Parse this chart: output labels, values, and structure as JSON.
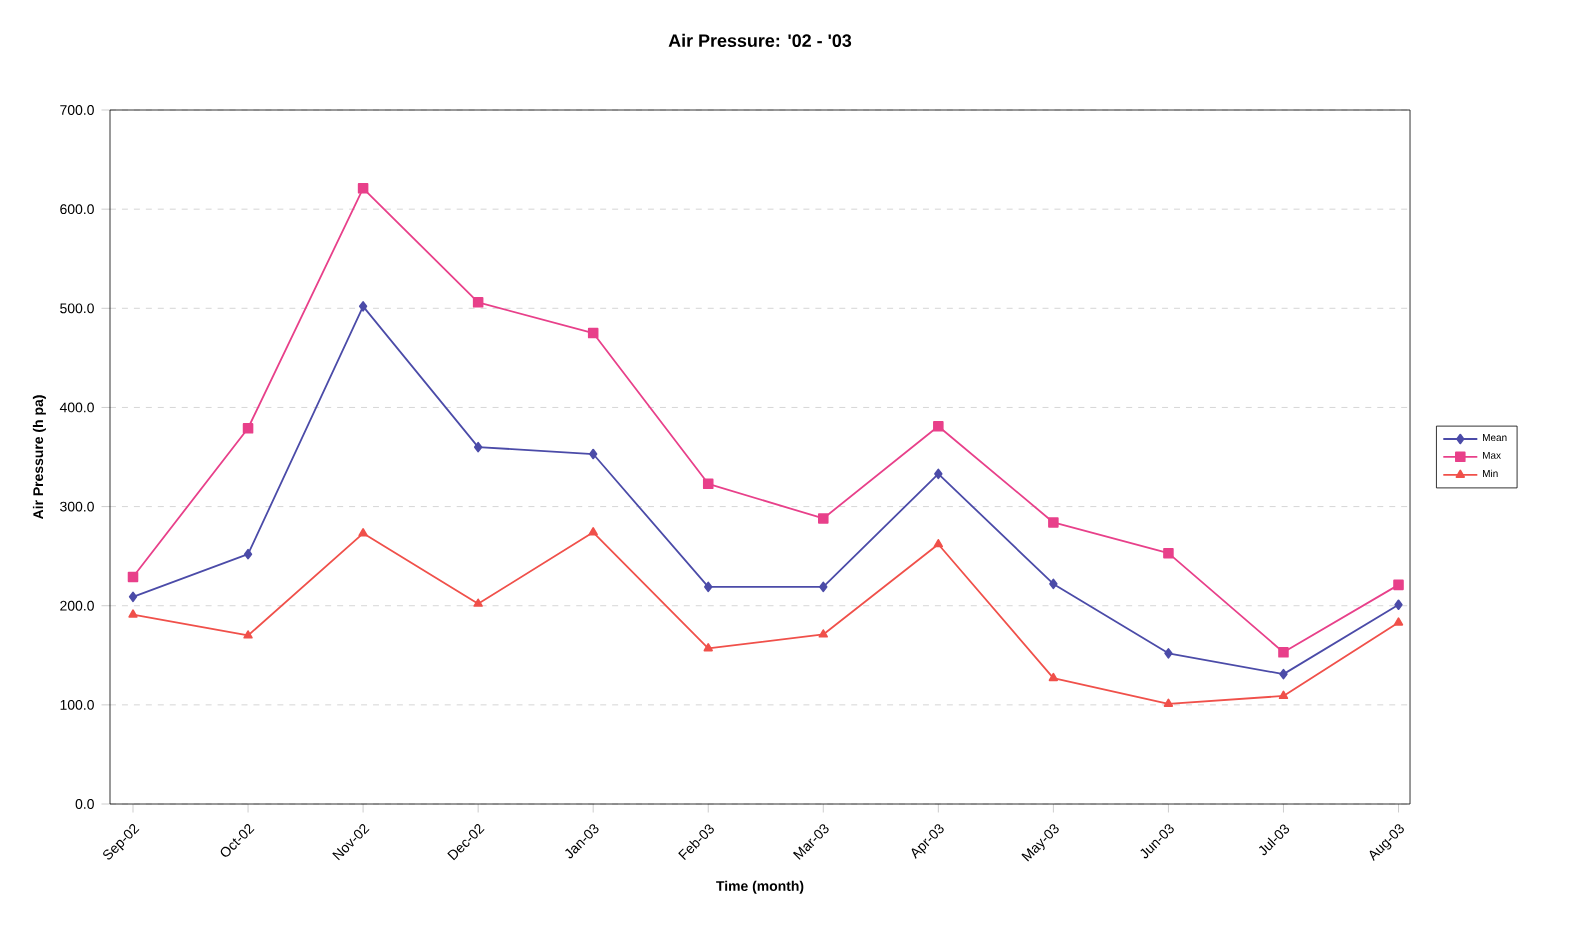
{
  "chart_data": {
    "type": "line",
    "title": "Air Pressure: '02 - '03",
    "xlabel": "Time (month)",
    "ylabel": "Air Pressure (h pa)",
    "categories": [
      "Sep-02",
      "Oct-02",
      "Nov-02",
      "Dec-02",
      "Jan-03",
      "Feb-03",
      "Mar-03",
      "Apr-03",
      "May-03",
      "Jun-03",
      "Jul-03",
      "Aug-03"
    ],
    "series": [
      {
        "name": "Mean",
        "color": "#4b4ba8",
        "marker": "diamond",
        "values": [
          209,
          252,
          502,
          360,
          353,
          219,
          219,
          333,
          222,
          152,
          131,
          201
        ]
      },
      {
        "name": "Max",
        "color": "#e8408a",
        "marker": "square",
        "values": [
          229,
          379,
          621,
          506,
          475,
          323,
          288,
          381,
          284,
          253,
          153,
          221
        ]
      },
      {
        "name": "Min",
        "color": "#f0504a",
        "marker": "triangle",
        "values": [
          191,
          170,
          273,
          202,
          274,
          157,
          171,
          262,
          127,
          101,
          109,
          183
        ]
      }
    ],
    "ylim": [
      0,
      700
    ],
    "yticks": [
      {
        "value": 0,
        "label": "0.0"
      },
      {
        "value": 100,
        "label": "100.0"
      },
      {
        "value": 200,
        "label": "200.0"
      },
      {
        "value": 300,
        "label": "300.0"
      },
      {
        "value": 400,
        "label": "400.0"
      },
      {
        "value": 500,
        "label": "500.0"
      },
      {
        "value": 600,
        "label": "600.0"
      },
      {
        "value": 700,
        "label": "700.0"
      }
    ],
    "grid": "y",
    "legend": "right",
    "line_style": "solid"
  }
}
